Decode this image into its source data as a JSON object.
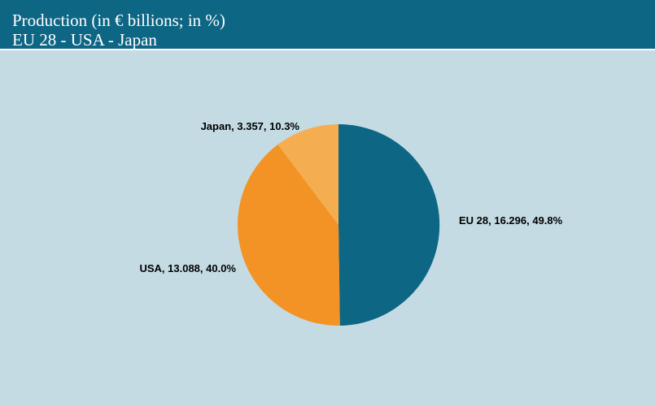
{
  "header": {
    "title": "Production (in € billions; in %)",
    "subtitle": "EU 28 - USA - Japan"
  },
  "chart_data": {
    "type": "pie",
    "title": "Production (in € billions; in %)",
    "subtitle": "EU 28 - USA - Japan",
    "slices": [
      {
        "name": "EU 28",
        "value": 16.296,
        "percent": 49.8,
        "color": "#0d6684",
        "label": "EU 28, 16.296, 49.8%"
      },
      {
        "name": "USA",
        "value": 13.088,
        "percent": 40.0,
        "color": "#f39325",
        "label": "USA, 13.088, 40.0%"
      },
      {
        "name": "Japan",
        "value": 3.357,
        "percent": 10.3,
        "color": "#f5ae4f",
        "label": "Japan, 3.357, 10.3%"
      }
    ],
    "start": "12 o'clock",
    "direction": "clockwise",
    "legend": "none"
  },
  "colors": {
    "header_bg": "#0d6684",
    "page_bg": "#c4dbe3"
  }
}
